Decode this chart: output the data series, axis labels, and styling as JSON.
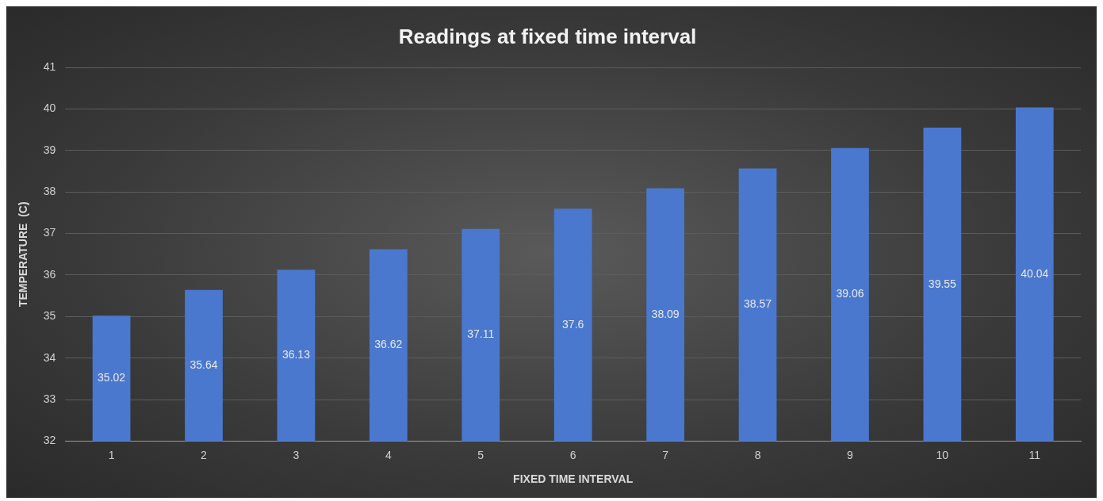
{
  "chart_data": {
    "type": "bar",
    "title": "Readings at fixed time interval",
    "xlabel": "FIXED TIME INTERVAL",
    "ylabel": "TEMPERATURE  (C)",
    "categories": [
      "1",
      "2",
      "3",
      "4",
      "5",
      "6",
      "7",
      "8",
      "9",
      "10",
      "11"
    ],
    "values": [
      35.02,
      35.64,
      36.13,
      36.62,
      37.11,
      37.6,
      38.09,
      38.57,
      39.06,
      39.55,
      40.04
    ],
    "color": "#4a78cf",
    "ylim": [
      32,
      41
    ],
    "yticks": [
      32,
      33,
      34,
      35,
      36,
      37,
      38,
      39,
      40,
      41
    ],
    "grid": "y",
    "legend": false,
    "data_labels": true
  }
}
